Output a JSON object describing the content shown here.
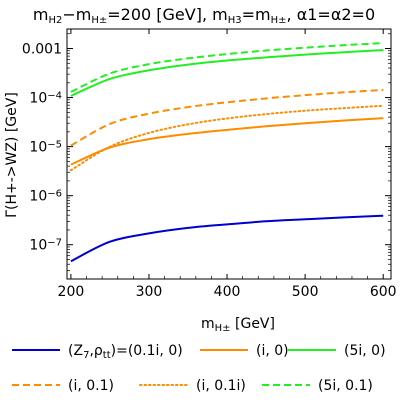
{
  "chart_data": {
    "type": "line",
    "title": "m_{H2}−m_{H±}=200 [GeV], m_{H3}=m_{H±}, α1=α2=0",
    "xlabel": "m_{H±} [GeV]",
    "ylabel": "Γ(H+->WZ) [GeV]",
    "x_ticks": [
      "200",
      "300",
      "400",
      "500",
      "600"
    ],
    "y_ticks": [
      "10^-7",
      "10^-6",
      "10^-5",
      "10^-4",
      "0.001"
    ],
    "xlim": [
      195,
      610
    ],
    "ylim": [
      2e-08,
      0.0025
    ],
    "y_scale": "log",
    "x": [
      200,
      250,
      300,
      350,
      400,
      450,
      500,
      550,
      600
    ],
    "series": [
      {
        "name": "(Z7,ρtt)=(0.1i, 0)",
        "color": "#0000cc",
        "dash": "solid",
        "values": [
          4.6e-08,
          1.15e-07,
          1.7e-07,
          2.2e-07,
          2.6e-07,
          3e-07,
          3.3e-07,
          3.6e-07,
          3.9e-07
        ]
      },
      {
        "name": "(i, 0)",
        "color": "#ff8c00",
        "dash": "solid",
        "values": [
          4.3e-06,
          9.6e-06,
          1.42e-05,
          1.82e-05,
          2.2e-05,
          2.6e-05,
          3e-05,
          3.4e-05,
          3.8e-05
        ]
      },
      {
        "name": "(5i, 0)",
        "color": "#22ee22",
        "dash": "solid",
        "values": [
          0.000108,
          0.00024,
          0.00036,
          0.00047,
          0.00057,
          0.00066,
          0.00075,
          0.00084,
          0.00093
        ]
      },
      {
        "name": "(i, 0.1)",
        "color": "#ff8c00",
        "dash": "dashed",
        "values": [
          1.05e-05,
          2.9e-05,
          4.7e-05,
          6.4e-05,
          8e-05,
          9.6e-05,
          0.000112,
          0.000128,
          0.000143
        ]
      },
      {
        "name": "(i, 0.1i)",
        "color": "#ff8c00",
        "dash": "dotted",
        "values": [
          3.3e-06,
          1e-05,
          1.9e-05,
          2.85e-05,
          3.75e-05,
          4.6e-05,
          5.4e-05,
          6.1e-05,
          6.8e-05
        ]
      },
      {
        "name": "(5i, 0.1)",
        "color": "#22ee22",
        "dash": "dashed",
        "values": [
          0.00013,
          0.00031,
          0.00048,
          0.00063,
          0.00077,
          0.00091,
          0.00104,
          0.00117,
          0.00129
        ]
      }
    ],
    "grid": false,
    "legend": "bottom"
  }
}
